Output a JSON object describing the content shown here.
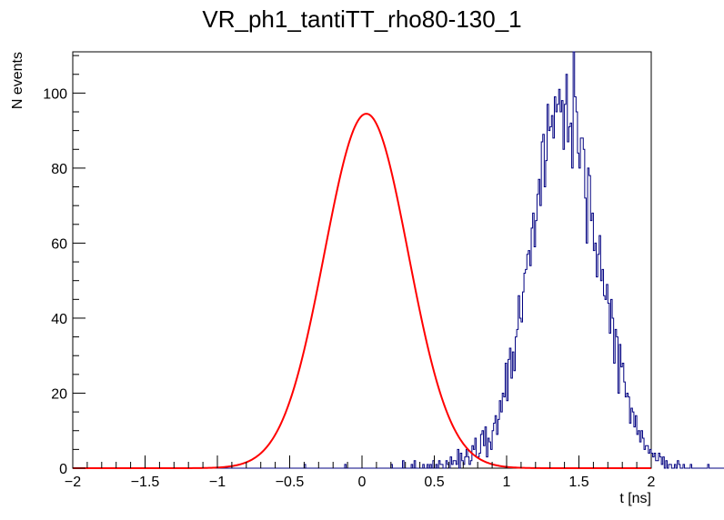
{
  "chart_data": {
    "type": "histogram",
    "title": "VR_ph1_tantiTT_rho80-130_1",
    "xlabel": "t [ns]",
    "ylabel": "N events",
    "xlim": [
      -2,
      2
    ],
    "ylim": [
      0,
      111
    ],
    "x_ticks": [
      "−2",
      "−1.5",
      "−1",
      "−0.5",
      "0",
      "0.5",
      "1",
      "1.5",
      "2"
    ],
    "x_tick_values": [
      -2,
      -1.5,
      -1,
      -0.5,
      0,
      0.5,
      1,
      1.5,
      2
    ],
    "y_ticks": [
      "0",
      "20",
      "40",
      "60",
      "80",
      "100"
    ],
    "y_tick_values": [
      0,
      20,
      40,
      60,
      80,
      100
    ],
    "grid": false,
    "legend": "none",
    "bin_width": 0.01,
    "bin_start": -2.0,
    "series": [
      {
        "kind": "histogram",
        "color": "#000080",
        "values": [
          0,
          0,
          0,
          0,
          0,
          0,
          0,
          0,
          0,
          0,
          0,
          0,
          0,
          0,
          0,
          0,
          0,
          0,
          0,
          0,
          0,
          0,
          0,
          0,
          0,
          0,
          0,
          0,
          0,
          0,
          0,
          0,
          0,
          0,
          0,
          0,
          0,
          0,
          0,
          0,
          0,
          0,
          0,
          0,
          0,
          0,
          0,
          0,
          0,
          0,
          0,
          0,
          0,
          0,
          0,
          0,
          0,
          0,
          0,
          0,
          0,
          0,
          0,
          0,
          0,
          0,
          0,
          0,
          0,
          0,
          0,
          0,
          0,
          0,
          0,
          0,
          0,
          0,
          0,
          0,
          0,
          0,
          0,
          0,
          0,
          0,
          0,
          0,
          0,
          0,
          0,
          0,
          0,
          0,
          0,
          0,
          0,
          0,
          0,
          0,
          0,
          0,
          0,
          0,
          0,
          0,
          0,
          0,
          0,
          0,
          0,
          0,
          0,
          0,
          0,
          0,
          0,
          0,
          0,
          0,
          0,
          0,
          0,
          0,
          0,
          0,
          0,
          0,
          0,
          0,
          0,
          0,
          0,
          0,
          0,
          0,
          0,
          0,
          0,
          0,
          0,
          0,
          0,
          0,
          0,
          0,
          0,
          0,
          0,
          0,
          0,
          0,
          0,
          0,
          0,
          0,
          0,
          0,
          0,
          0,
          1,
          0,
          0,
          0,
          0,
          0,
          0,
          0,
          0,
          0,
          0,
          0,
          0,
          0,
          0,
          0,
          0,
          0,
          0,
          0,
          0,
          0,
          0,
          0,
          0,
          0,
          0,
          0,
          1,
          0,
          0,
          0,
          0,
          0,
          0,
          0,
          0,
          0,
          0,
          0,
          0,
          0,
          0,
          0,
          0,
          0,
          0,
          0,
          0,
          0,
          0,
          0,
          0,
          0,
          0,
          0,
          0,
          0,
          0,
          0,
          1,
          0,
          0,
          0,
          0,
          0,
          0,
          0,
          2,
          0,
          0,
          0,
          0,
          0,
          1,
          0,
          2,
          0,
          0,
          0,
          0,
          0,
          1,
          0,
          0,
          1,
          0,
          1,
          0,
          2,
          0,
          1,
          0,
          2,
          1,
          1,
          0,
          0,
          2,
          1,
          0,
          3,
          1,
          2,
          2,
          1,
          5,
          0,
          4,
          2,
          1,
          3,
          5,
          3,
          1,
          2,
          6,
          5,
          8,
          3,
          3,
          4,
          9,
          10,
          6,
          11,
          3,
          8,
          7,
          5,
          10,
          12,
          14,
          9,
          13,
          18,
          15,
          20,
          19,
          28,
          18,
          29,
          32,
          24,
          31,
          26,
          35,
          37,
          46,
          40,
          39,
          47,
          52,
          53,
          57,
          58,
          54,
          64,
          68,
          59,
          66,
          73,
          77,
          70,
          87,
          89,
          75,
          82,
          97,
          90,
          91,
          94,
          88,
          99,
          95,
          97,
          101,
          95,
          98,
          85,
          97,
          105,
          87,
          91,
          92,
          80,
          112,
          99,
          95,
          84,
          80,
          88,
          88,
          85,
          72,
          60,
          80,
          78,
          66,
          68,
          58,
          60,
          51,
          57,
          62,
          50,
          53,
          46,
          45,
          49,
          44,
          36,
          45,
          40,
          28,
          37,
          35,
          20,
          33,
          27,
          28,
          23,
          19,
          20,
          19,
          12,
          16,
          15,
          11,
          14,
          9,
          10,
          7,
          10,
          8,
          5,
          6,
          6,
          4,
          5,
          4,
          3,
          4,
          2,
          2,
          4,
          3,
          1,
          3,
          0,
          2,
          0,
          1,
          1,
          0,
          0,
          1,
          0,
          2,
          1,
          0,
          0,
          1,
          0,
          0,
          0,
          0,
          1,
          0,
          0,
          0,
          0,
          0,
          0,
          0,
          0,
          0,
          0,
          0,
          1,
          0,
          0,
          0,
          0,
          0,
          0,
          0,
          0,
          0,
          0,
          0,
          0,
          0,
          0,
          0,
          0,
          0,
          0,
          0,
          0,
          0,
          0,
          0,
          0,
          0,
          0,
          0,
          0,
          0,
          0,
          0,
          0,
          0,
          0,
          0,
          0,
          0,
          0,
          0,
          0,
          0,
          0,
          0,
          0,
          0,
          0,
          0,
          0,
          0,
          0,
          0,
          0,
          0,
          0,
          0,
          0,
          0,
          0,
          0,
          0,
          0,
          0,
          0,
          0,
          0,
          0,
          0,
          0,
          0,
          0,
          0,
          0,
          0,
          0,
          0,
          0,
          0,
          0,
          0,
          0,
          0,
          0,
          0,
          0,
          0,
          0,
          0,
          0,
          0,
          0,
          0,
          0,
          0,
          0
        ]
      },
      {
        "kind": "gaussian-fit",
        "color": "#ff0000",
        "amplitude": 94.5,
        "mean": 0.03,
        "sigma": 0.29
      }
    ]
  }
}
